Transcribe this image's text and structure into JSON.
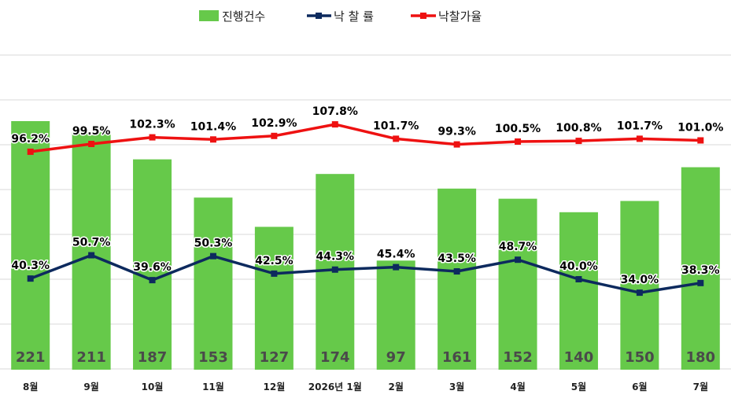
{
  "chart_data": {
    "type": "bar",
    "categories": [
      "8월",
      "9월",
      "10월",
      "11월",
      "12월",
      "2026년 1월",
      "2월",
      "3월",
      "4월",
      "5월",
      "6월",
      "7월"
    ],
    "series": [
      {
        "name": "진행건수",
        "type": "bar",
        "color": "#66c94a",
        "values": [
          221,
          211,
          187,
          153,
          127,
          174,
          97,
          161,
          152,
          140,
          150,
          180
        ]
      },
      {
        "name": "낙 찰 률",
        "type": "line",
        "color": "#0d2a5e",
        "values": [
          40.3,
          50.7,
          39.6,
          50.3,
          42.5,
          44.3,
          45.4,
          43.5,
          48.7,
          40.0,
          34.0,
          38.3
        ],
        "labels": [
          "40.3%",
          "50.7%",
          "39.6%",
          "50.3%",
          "42.5%",
          "44.3%",
          "45.4%",
          "43.5%",
          "48.7%",
          "40.0%",
          "34.0%",
          "38.3%"
        ]
      },
      {
        "name": "낙찰가율",
        "type": "line",
        "color": "#ee1111",
        "values": [
          96.2,
          99.5,
          102.3,
          101.4,
          102.9,
          107.8,
          101.7,
          99.3,
          100.5,
          100.8,
          101.7,
          101.0
        ],
        "labels": [
          "96.2%",
          "99.5%",
          "102.3%",
          "101.4%",
          "102.9%",
          "107.8%",
          "101.7%",
          "99.3%",
          "100.5%",
          "100.8%",
          "101.7%",
          "101.0%"
        ]
      }
    ],
    "legend": {
      "position": "top-center",
      "items": [
        "진행건수",
        "낙 찰 률",
        "낙찰가율"
      ]
    },
    "grid": true,
    "axes_visible": false
  }
}
